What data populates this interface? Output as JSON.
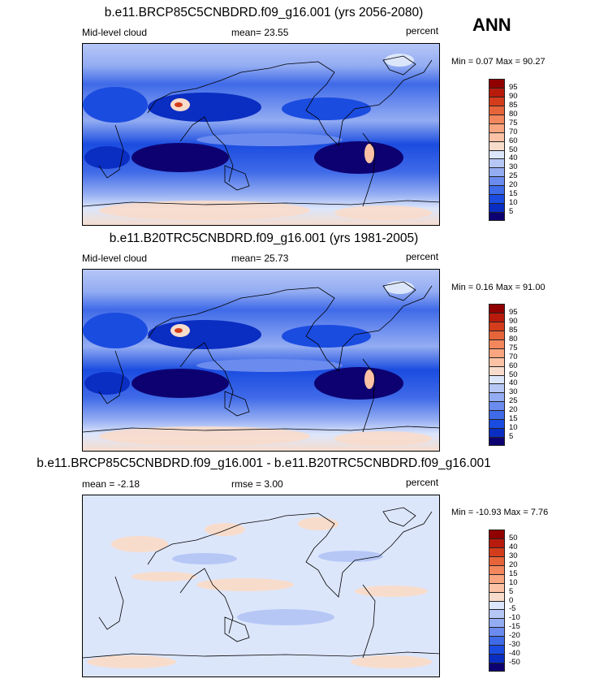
{
  "season": "ANN",
  "colors": {
    "abs": [
      "#0d0070",
      "#0a2dc2",
      "#1b4ce0",
      "#3f6ae8",
      "#6b8cee",
      "#93acf2",
      "#b6c7f6",
      "#dce6fb",
      "#f8dccb",
      "#fbc2a5",
      "#f8a580",
      "#f2865c",
      "#e6643a",
      "#d43d1b",
      "#b81b0c",
      "#900000"
    ],
    "diff": [
      "#0d0070",
      "#0a2dc2",
      "#1b4ce0",
      "#3f6ae8",
      "#6b8cee",
      "#93acf2",
      "#b6c7f6",
      "#dce6fb",
      "#f8dccb",
      "#fbc2a5",
      "#f8a580",
      "#f2865c",
      "#e6643a",
      "#d43d1b",
      "#b81b0c",
      "#900000"
    ]
  },
  "panels": [
    {
      "title": "b.e11.BRCP85C5CNBDRD.f09_g16.001 (yrs 2056-2080)",
      "left_label": "Mid-level cloud",
      "mid_label": "mean=  23.55",
      "right_label": "percent",
      "minmax": "Min =  0.07 Max =  90.27",
      "scale": "abs",
      "ticks": [
        "95",
        "90",
        "85",
        "80",
        "75",
        "70",
        "60",
        "50",
        "40",
        "30",
        "25",
        "20",
        "15",
        "10",
        "5"
      ]
    },
    {
      "title": "b.e11.B20TRC5CNBDRD.f09_g16.001 (yrs 1981-2005)",
      "left_label": "Mid-level cloud",
      "mid_label": "mean=  25.73",
      "right_label": "percent",
      "minmax": "Min =  0.16 Max =  91.00",
      "scale": "abs",
      "ticks": [
        "95",
        "90",
        "85",
        "80",
        "75",
        "70",
        "60",
        "50",
        "40",
        "30",
        "25",
        "20",
        "15",
        "10",
        "5"
      ]
    },
    {
      "title": "b.e11.BRCP85C5CNBDRD.f09_g16.001 - b.e11.B20TRC5CNBDRD.f09_g16.001",
      "left_label": "mean =  -2.18",
      "mid_label": "rmse =   3.00",
      "right_label": "percent",
      "minmax": "Min = -10.93 Max =   7.76",
      "scale": "diff",
      "ticks": [
        "50",
        "40",
        "30",
        "20",
        "15",
        "10",
        "5",
        "0",
        "-5",
        "-10",
        "-15",
        "-20",
        "-30",
        "-40",
        "-50"
      ]
    }
  ]
}
